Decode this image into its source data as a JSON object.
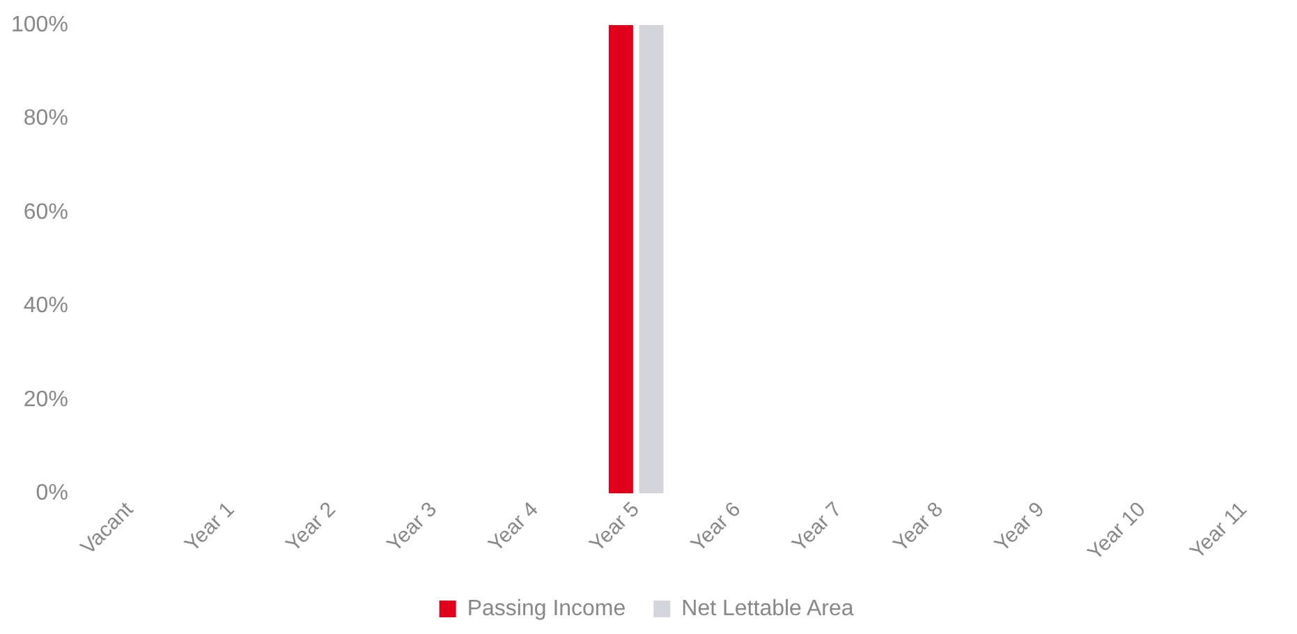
{
  "chart_data": {
    "type": "bar",
    "categories": [
      "Vacant",
      "Year 1",
      "Year 2",
      "Year 3",
      "Year 4",
      "Year 5",
      "Year 6",
      "Year 7",
      "Year 8",
      "Year 9",
      "Year 10",
      "Year 11"
    ],
    "series": [
      {
        "name": "Passing Income",
        "color": "#e0001b",
        "values": [
          0,
          0,
          0,
          0,
          0,
          100,
          0,
          0,
          0,
          0,
          0,
          0
        ]
      },
      {
        "name": "Net Lettable Area",
        "color": "#d4d4dc",
        "values": [
          0,
          0,
          0,
          0,
          0,
          100,
          0,
          0,
          0,
          0,
          0,
          0
        ]
      }
    ],
    "ylim": [
      0,
      100
    ],
    "yticks": [
      {
        "value": 0,
        "label": "0%"
      },
      {
        "value": 20,
        "label": "20%"
      },
      {
        "value": 40,
        "label": "40%"
      },
      {
        "value": 60,
        "label": "60%"
      },
      {
        "value": 80,
        "label": "80%"
      },
      {
        "value": 100,
        "label": "100%"
      }
    ],
    "grid": false,
    "legend": "bottom"
  }
}
